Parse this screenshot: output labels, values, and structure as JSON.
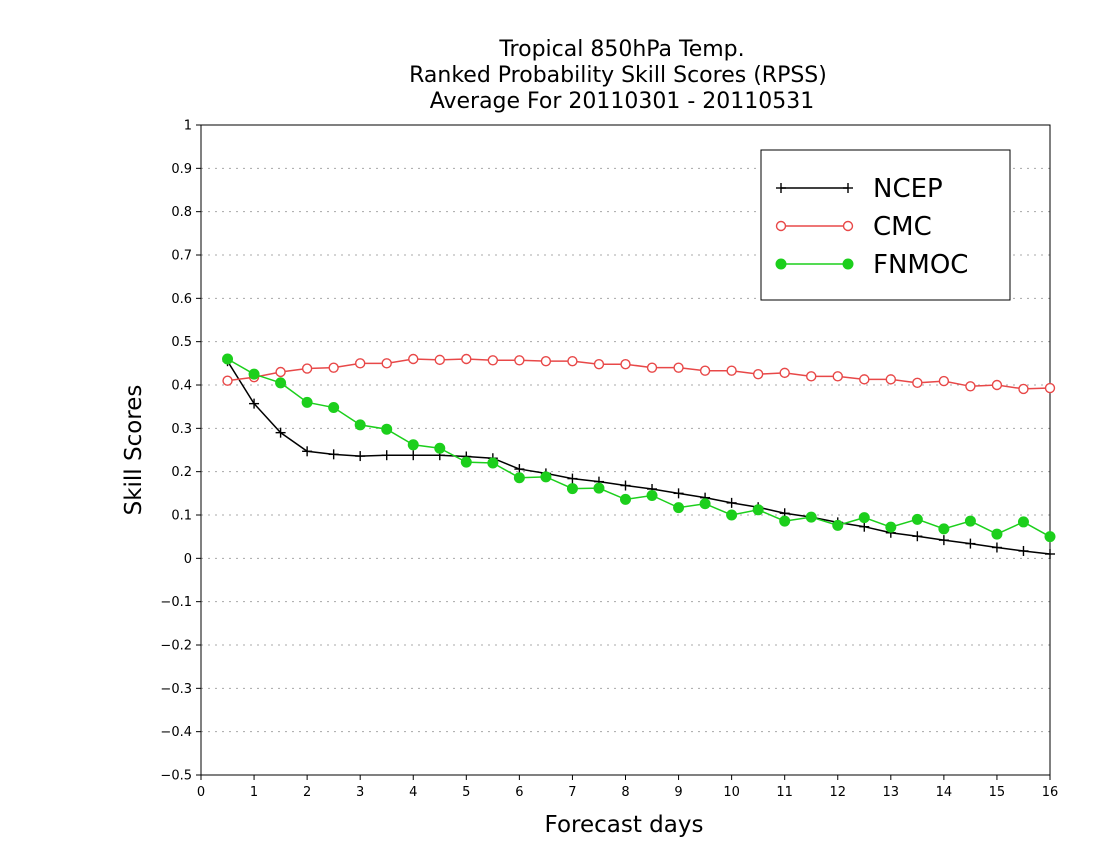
{
  "chart_data": {
    "type": "line",
    "title": [
      "Tropical 850hPa Temp.",
      "Ranked Probability Skill Scores (RPSS)",
      "Average For 20110301 - 20110531"
    ],
    "xlabel": "Forecast days",
    "ylabel": "Skill Scores",
    "xlim": [
      0,
      16
    ],
    "ylim": [
      -0.5,
      1
    ],
    "x_ticks": [
      0,
      1,
      2,
      3,
      4,
      5,
      6,
      7,
      8,
      9,
      10,
      11,
      12,
      13,
      14,
      15,
      16
    ],
    "y_ticks": [
      -0.5,
      -0.4,
      -0.3,
      -0.2,
      -0.1,
      0,
      0.1,
      0.2,
      0.3,
      0.4,
      0.5,
      0.6,
      0.7,
      0.8,
      0.9,
      1
    ],
    "grid": "horizontal dotted",
    "legend_position": "top-right",
    "x": [
      0.5,
      1,
      1.5,
      2,
      2.5,
      3,
      3.5,
      4,
      4.5,
      5,
      5.5,
      6,
      6.5,
      7,
      7.5,
      8,
      8.5,
      9,
      9.5,
      10,
      10.5,
      11,
      11.5,
      12,
      12.5,
      13,
      13.5,
      14,
      14.5,
      15,
      15.5,
      16
    ],
    "series": [
      {
        "name": "NCEP",
        "color": "#000000",
        "marker": "plus",
        "values": [
          0.455,
          0.357,
          0.29,
          0.247,
          0.24,
          0.236,
          0.238,
          0.238,
          0.238,
          0.235,
          0.231,
          0.206,
          0.196,
          0.184,
          0.177,
          0.168,
          0.16,
          0.15,
          0.14,
          0.128,
          0.118,
          0.104,
          0.095,
          0.083,
          0.073,
          0.059,
          0.051,
          0.042,
          0.034,
          0.025,
          0.017,
          0.01
        ]
      },
      {
        "name": "CMC",
        "color": "#e84848",
        "marker": "open-circle",
        "values": [
          0.41,
          0.418,
          0.43,
          0.438,
          0.44,
          0.45,
          0.45,
          0.46,
          0.458,
          0.46,
          0.457,
          0.457,
          0.455,
          0.455,
          0.448,
          0.448,
          0.44,
          0.44,
          0.433,
          0.433,
          0.425,
          0.428,
          0.42,
          0.42,
          0.413,
          0.413,
          0.405,
          0.409,
          0.397,
          0.4,
          0.391,
          0.393
        ]
      },
      {
        "name": "FNMOC",
        "color": "#1ccf1c",
        "marker": "filled-circle",
        "values": [
          0.46,
          0.425,
          0.405,
          0.36,
          0.348,
          0.308,
          0.298,
          0.262,
          0.254,
          0.222,
          0.22,
          0.186,
          0.188,
          0.161,
          0.162,
          0.136,
          0.145,
          0.117,
          0.126,
          0.1,
          0.112,
          0.086,
          0.095,
          0.076,
          0.094,
          0.072,
          0.09,
          0.068,
          0.086,
          0.056,
          0.084,
          0.05
        ]
      }
    ]
  }
}
